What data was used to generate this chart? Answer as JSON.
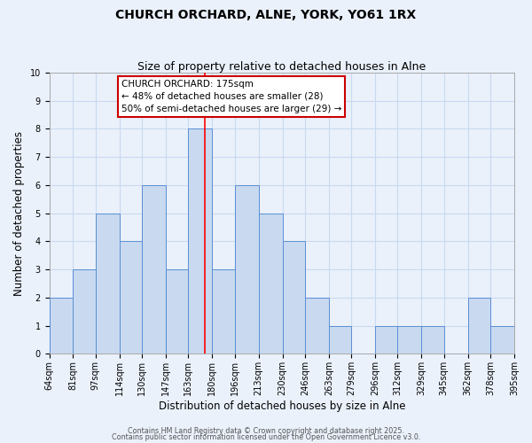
{
  "title": "CHURCH ORCHARD, ALNE, YORK, YO61 1RX",
  "subtitle": "Size of property relative to detached houses in Alne",
  "xlabel": "Distribution of detached houses by size in Alne",
  "ylabel": "Number of detached properties",
  "bin_labels": [
    "64sqm",
    "81sqm",
    "97sqm",
    "114sqm",
    "130sqm",
    "147sqm",
    "163sqm",
    "180sqm",
    "196sqm",
    "213sqm",
    "230sqm",
    "246sqm",
    "263sqm",
    "279sqm",
    "296sqm",
    "312sqm",
    "329sqm",
    "345sqm",
    "362sqm",
    "378sqm",
    "395sqm"
  ],
  "all_edges": [
    64,
    81,
    97,
    114,
    130,
    147,
    163,
    180,
    196,
    213,
    230,
    246,
    263,
    279,
    296,
    312,
    329,
    345,
    362,
    378,
    395
  ],
  "heights_per_bin": [
    2,
    3,
    5,
    4,
    6,
    3,
    8,
    3,
    6,
    5,
    4,
    2,
    1,
    0,
    1,
    1,
    1,
    0,
    2,
    1
  ],
  "bar_color": "#c8d9f0",
  "bar_edge_color": "#5b8fd4",
  "red_line_x": 175,
  "ylim": [
    0,
    10
  ],
  "yticks": [
    0,
    1,
    2,
    3,
    4,
    5,
    6,
    7,
    8,
    9,
    10
  ],
  "annotation_title": "CHURCH ORCHARD: 175sqm",
  "annotation_line1": "← 48% of detached houses are smaller (28)",
  "annotation_line2": "50% of semi-detached houses are larger (29) →",
  "annotation_box_color": "#ffffff",
  "annotation_box_edge": "#cc0000",
  "grid_color": "#c8d9f0",
  "background_color": "#eaf1fb",
  "plot_bg_color": "#eaf1fb",
  "footer1": "Contains HM Land Registry data © Crown copyright and database right 2025.",
  "footer2": "Contains public sector information licensed under the Open Government Licence v3.0.",
  "title_fontsize": 10,
  "subtitle_fontsize": 9,
  "axis_label_fontsize": 8.5,
  "tick_fontsize": 7,
  "annotation_fontsize": 7.5,
  "footer_fontsize": 5.8
}
